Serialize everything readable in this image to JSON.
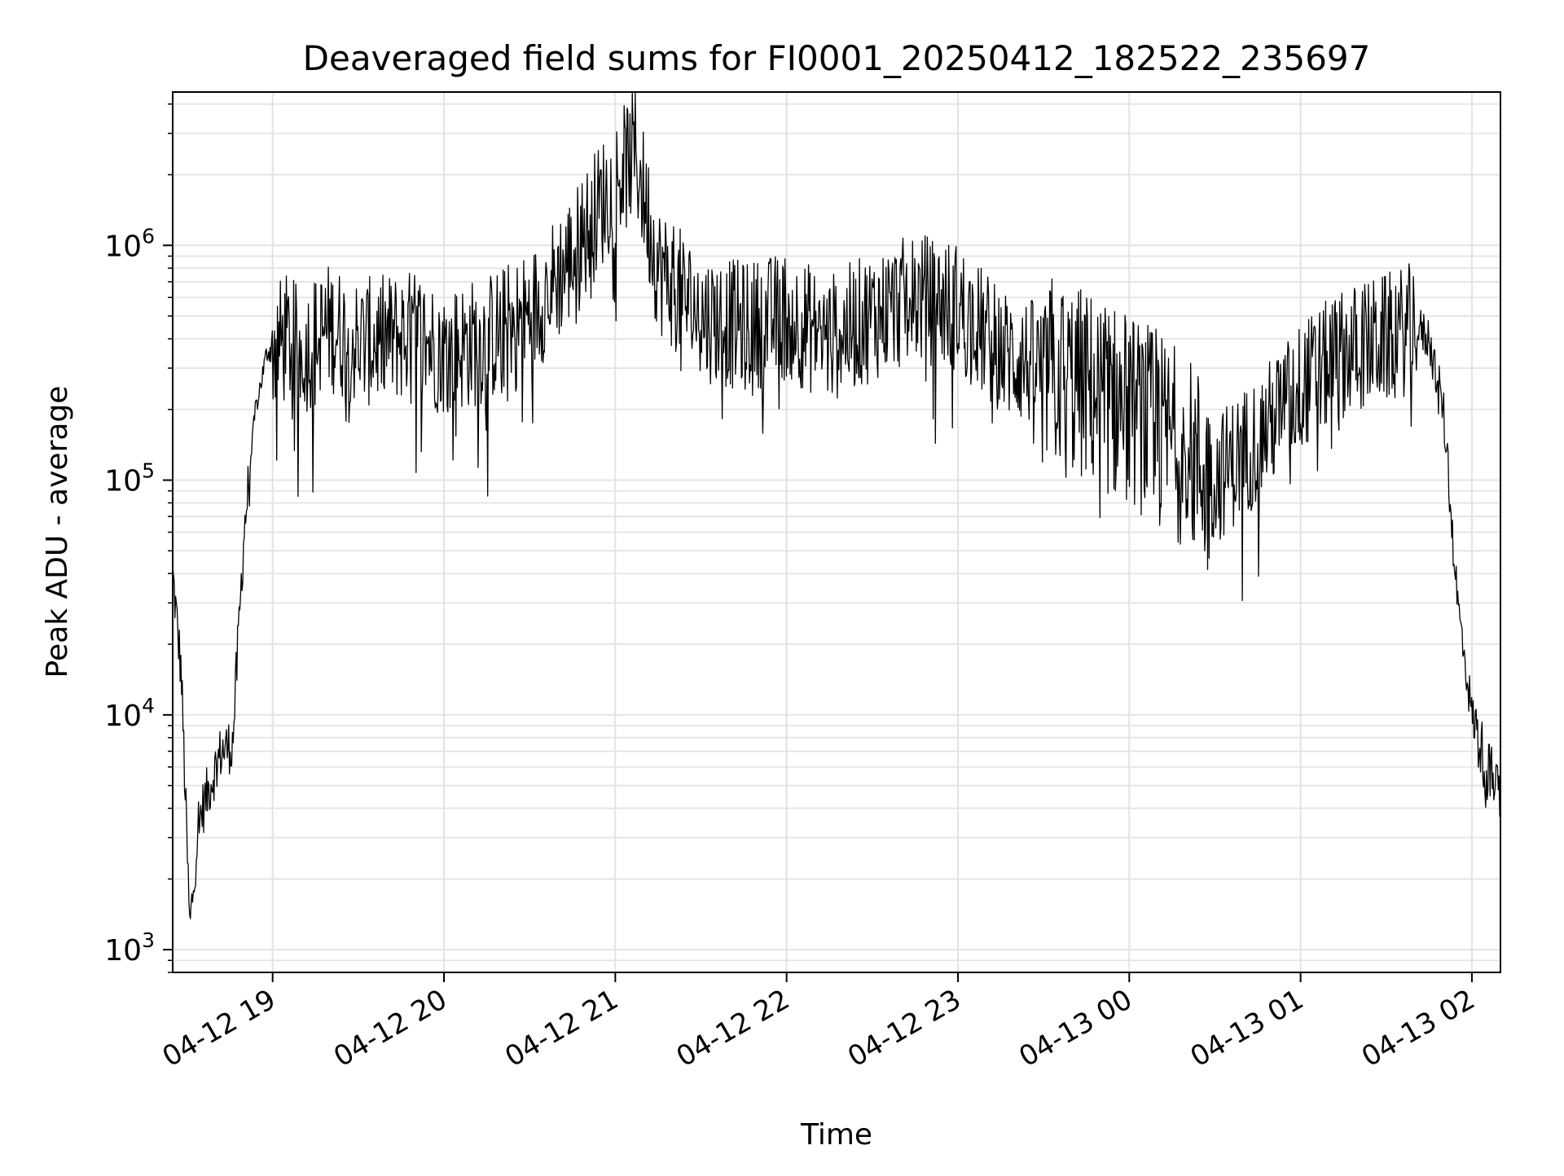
{
  "chart_data": {
    "type": "line",
    "title": "Deaveraged field sums for FI0001_20250412_182522_235697",
    "xlabel": "Time",
    "ylabel": "Peak ADU - average",
    "y_scale": "log",
    "ylim": [
      800,
      4500000
    ],
    "xlim": [
      "2025-04-12 18:25",
      "2025-04-13 02:10"
    ],
    "x_ticks": [
      "04-12 19",
      "04-12 20",
      "04-12 21",
      "04-12 22",
      "04-12 23",
      "04-13 00",
      "04-13 01",
      "04-13 02"
    ],
    "y_ticks": [
      {
        "base": "10",
        "exp": "3",
        "value": 1000
      },
      {
        "base": "10",
        "exp": "4",
        "value": 10000
      },
      {
        "base": "10",
        "exp": "5",
        "value": 100000
      },
      {
        "base": "10",
        "exp": "6",
        "value": 1000000
      }
    ],
    "grid": true,
    "line_color": "#000000",
    "x": [
      "2025-04-12 18:25",
      "2025-04-12 18:28",
      "2025-04-12 18:31",
      "2025-04-12 18:34",
      "2025-04-12 18:38",
      "2025-04-12 18:42",
      "2025-04-12 18:46",
      "2025-04-12 18:50",
      "2025-04-12 18:54",
      "2025-04-12 18:58",
      "2025-04-12 19:05",
      "2025-04-12 19:10",
      "2025-04-12 19:20",
      "2025-04-12 19:30",
      "2025-04-12 19:40",
      "2025-04-12 19:50",
      "2025-04-12 20:00",
      "2025-04-12 20:15",
      "2025-04-12 20:30",
      "2025-04-12 20:45",
      "2025-04-12 20:55",
      "2025-04-12 21:07",
      "2025-04-12 21:15",
      "2025-04-12 21:30",
      "2025-04-12 21:45",
      "2025-04-12 22:00",
      "2025-04-12 22:15",
      "2025-04-12 22:30",
      "2025-04-12 22:45",
      "2025-04-12 23:00",
      "2025-04-12 23:15",
      "2025-04-12 23:30",
      "2025-04-12 23:45",
      "2025-04-13 00:00",
      "2025-04-13 00:15",
      "2025-04-13 00:30",
      "2025-04-13 00:45",
      "2025-04-13 01:00",
      "2025-04-13 01:15",
      "2025-04-13 01:30",
      "2025-04-13 01:40",
      "2025-04-13 01:45",
      "2025-04-13 01:50",
      "2025-04-13 01:55",
      "2025-04-13 02:00",
      "2025-04-13 02:05",
      "2025-04-13 02:10"
    ],
    "series": [
      {
        "values": [
          40000,
          15000,
          1200,
          3500,
          5000,
          7000,
          7500,
          60000,
          200000,
          350000,
          400000,
          350000,
          450000,
          380000,
          400000,
          420000,
          350000,
          400000,
          500000,
          900000,
          1500000,
          2500000,
          800000,
          500000,
          450000,
          500000,
          400000,
          500000,
          600000,
          550000,
          350000,
          300000,
          250000,
          200000,
          150000,
          100000,
          150000,
          250000,
          350000,
          400000,
          450000,
          400000,
          200000,
          30000,
          10000,
          6000,
          4500
        ]
      }
    ]
  }
}
